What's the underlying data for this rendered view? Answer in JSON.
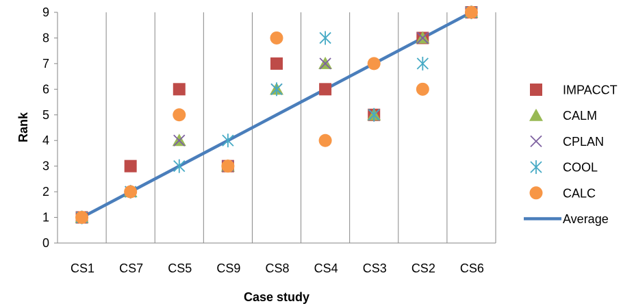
{
  "chart_data": {
    "type": "scatter",
    "title": "",
    "xlabel": "Case study",
    "ylabel": "Rank",
    "categories": [
      "CS1",
      "CS7",
      "CS5",
      "CS9",
      "CS8",
      "CS4",
      "CS3",
      "CS2",
      "CS6"
    ],
    "ylim": [
      0,
      9
    ],
    "yticks": [
      "0",
      "1",
      "2",
      "3",
      "4",
      "5",
      "6",
      "7",
      "8",
      "9"
    ],
    "grid": "vertical",
    "legend_position": "right",
    "series": [
      {
        "name": "IMPACCT",
        "marker": "square",
        "color": "#BE4B48",
        "values": [
          1,
          3,
          6,
          3,
          7,
          6,
          5,
          8,
          9
        ]
      },
      {
        "name": "CALM",
        "marker": "triangle",
        "color": "#98B954",
        "values": [
          1,
          2,
          4,
          3,
          6,
          7,
          5,
          8,
          9
        ]
      },
      {
        "name": "CPLAN",
        "marker": "x",
        "color": "#7D60A0",
        "values": [
          1,
          2,
          4,
          3,
          6,
          7,
          5,
          8,
          9
        ]
      },
      {
        "name": "COOL",
        "marker": "asterisk",
        "color": "#46AAC5",
        "values": [
          1,
          2,
          3,
          4,
          6,
          8,
          5,
          7,
          9
        ]
      },
      {
        "name": "CALC",
        "marker": "circle",
        "color": "#F79646",
        "values": [
          1,
          2,
          5,
          3,
          8,
          4,
          7,
          6,
          9
        ]
      },
      {
        "name": "Average",
        "marker": "line",
        "color": "#4A7EBB",
        "values": [
          1,
          2,
          3,
          4,
          5,
          6,
          7,
          8,
          9
        ]
      }
    ]
  }
}
